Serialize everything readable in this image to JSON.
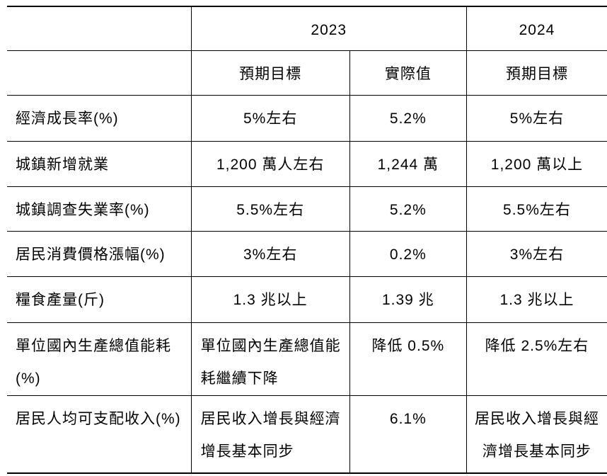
{
  "table": {
    "header": {
      "year_2023": "2023",
      "year_2024": "2024"
    },
    "subheader": {
      "expected_2023": "預期目標",
      "actual_2023": "實際值",
      "expected_2024": "預期目標"
    },
    "rows": [
      {
        "label": "經濟成長率(%)",
        "target_2023": "5%左右",
        "actual_2023": "5.2%",
        "target_2024": "5%左右"
      },
      {
        "label": "城鎮新增就業",
        "target_2023": "1,200 萬人左右",
        "actual_2023": "1,244 萬",
        "target_2024": "1,200 萬以上"
      },
      {
        "label": "城鎮調查失業率(%)",
        "target_2023": "5.5%左右",
        "actual_2023": "5.2%",
        "target_2024": "5.5%左右"
      },
      {
        "label": "居民消費價格漲幅(%)",
        "target_2023": "3%左右",
        "actual_2023": "0.2%",
        "target_2024": "3%左右"
      },
      {
        "label": "糧食產量(斤)",
        "target_2023": "1.3 兆以上",
        "actual_2023": "1.39 兆",
        "target_2024": "1.3 兆以上"
      },
      {
        "label": "單位國內生產總值能耗(%)",
        "target_2023": "單位國內生產總值能\n耗繼續下降",
        "actual_2023": "降低 0.5%",
        "target_2024": "降低 2.5%左右"
      },
      {
        "label": "居民人均可支配收入(%)",
        "target_2023": "居民收入增長與經濟\n增長基本同步",
        "actual_2023": "6.1%",
        "target_2024": "居民收入增長與經\n濟增長基本同步"
      }
    ],
    "colors": {
      "border": "#000000",
      "text": "#000000",
      "background": "#ffffff"
    }
  }
}
